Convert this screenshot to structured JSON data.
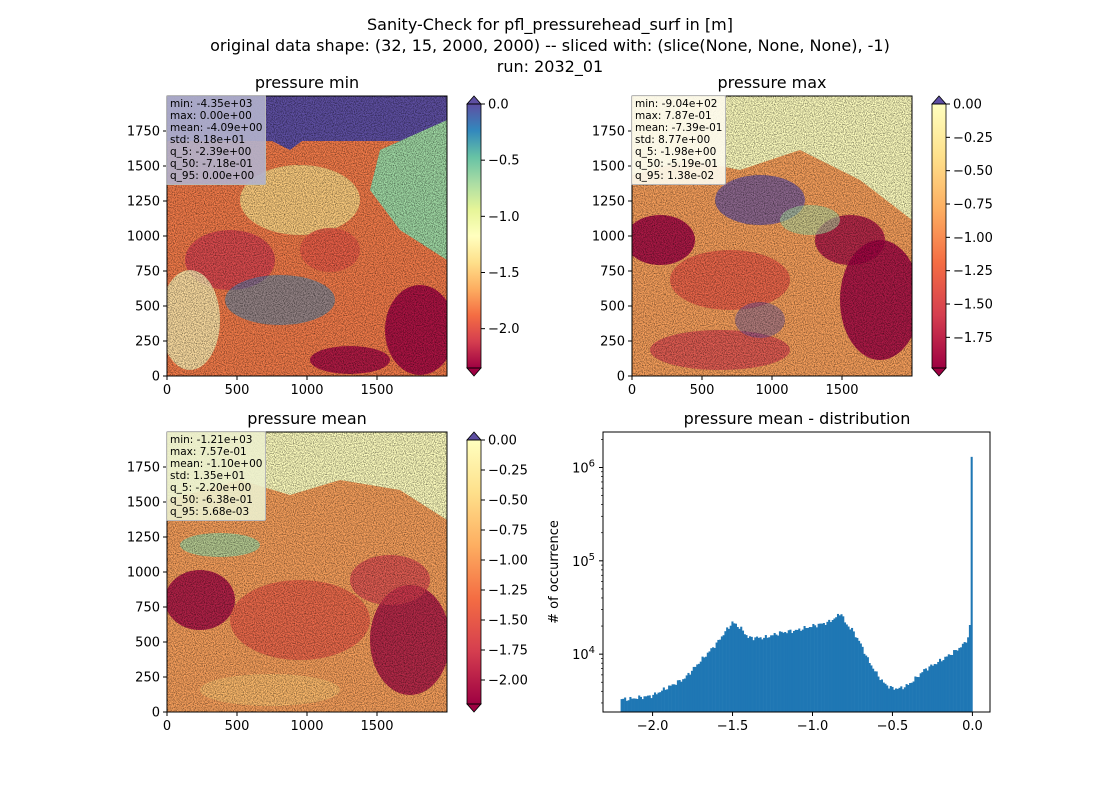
{
  "figure": {
    "title_lines": [
      "Sanity-Check for pfl_pressurehead_surf in [m]",
      "original data shape: (32, 15, 2000, 2000) -- sliced with: (slice(None, None, None), -1)",
      "run: 2032_01"
    ]
  },
  "chart_data": [
    {
      "type": "heatmap",
      "title": "pressure min",
      "x_ticks": [
        "0",
        "500",
        "1000",
        "1500"
      ],
      "y_ticks": [
        "0",
        "250",
        "500",
        "750",
        "1000",
        "1250",
        "1500",
        "1750"
      ],
      "xlim": [
        0,
        2000
      ],
      "ylim": [
        0,
        2000
      ],
      "colormap": "Spectral",
      "colorbar": {
        "range": [
          -2.35,
          0.0
        ],
        "ticks": [
          "0.0",
          "−0.5",
          "−1.0",
          "−1.5",
          "−2.0"
        ],
        "tick_values": [
          0.0,
          -0.5,
          -1.0,
          -1.5,
          -2.0
        ],
        "extend_top_color": "#5e4fa2",
        "extend_bottom_color": "#9e0142"
      },
      "stats": [
        "min: -4.35e+03",
        "max: 0.00e+00",
        "mean: -4.09e+00",
        "std: 8.18e+01",
        "q_5: -2.39e+00",
        "q_50: -7.18e-01",
        "q_95: 0.00e+00"
      ]
    },
    {
      "type": "heatmap",
      "title": "pressure max",
      "x_ticks": [
        "0",
        "500",
        "1000",
        "1500"
      ],
      "y_ticks": [
        "0",
        "250",
        "500",
        "750",
        "1000",
        "1250",
        "1500",
        "1750"
      ],
      "xlim": [
        0,
        2000
      ],
      "ylim": [
        0,
        2000
      ],
      "colormap": "Spectral",
      "colorbar": {
        "range": [
          -1.98,
          0.0
        ],
        "ticks": [
          "0.00",
          "−0.25",
          "−0.50",
          "−0.75",
          "−1.00",
          "−1.25",
          "−1.50",
          "−1.75"
        ],
        "tick_values": [
          0.0,
          -0.25,
          -0.5,
          -0.75,
          -1.0,
          -1.25,
          -1.5,
          -1.75
        ],
        "extend_top_color": "#5e4fa2",
        "extend_bottom_color": "#9e0142"
      },
      "stats": [
        "min: -9.04e+02",
        "max: 7.87e-01",
        "mean: -7.39e-01",
        "std: 8.77e+00",
        "q_5: -1.98e+00",
        "q_50: -5.19e-01",
        "q_95: 1.38e-02"
      ]
    },
    {
      "type": "heatmap",
      "title": "pressure mean",
      "x_ticks": [
        "0",
        "500",
        "1000",
        "1500"
      ],
      "y_ticks": [
        "0",
        "250",
        "500",
        "750",
        "1000",
        "1250",
        "1500",
        "1750"
      ],
      "xlim": [
        0,
        2000
      ],
      "ylim": [
        0,
        2000
      ],
      "colormap": "Spectral",
      "colorbar": {
        "range": [
          -2.2,
          0.0
        ],
        "ticks": [
          "0.00",
          "−0.25",
          "−0.50",
          "−0.75",
          "−1.00",
          "−1.25",
          "−1.50",
          "−1.75",
          "−2.00"
        ],
        "tick_values": [
          0.0,
          -0.25,
          -0.5,
          -0.75,
          -1.0,
          -1.25,
          -1.5,
          -1.75,
          -2.0
        ],
        "extend_top_color": "#5e4fa2",
        "extend_bottom_color": "#9e0142"
      },
      "stats": [
        "min: -1.21e+03",
        "max: 7.57e-01",
        "mean: -1.10e+00",
        "std: 1.35e+01",
        "q_5: -2.20e+00",
        "q_50: -6.38e-01",
        "q_95: 5.68e-03"
      ]
    },
    {
      "type": "bar",
      "title": "pressure mean - distribution",
      "ylabel": "# of occurrence",
      "xlabel": "",
      "yscale": "log",
      "xlim": [
        -2.31,
        0.11
      ],
      "ylim": [
        2400,
        2400000
      ],
      "x_ticks": [
        "−2.0",
        "−1.5",
        "−1.0",
        "−0.5",
        "0.0"
      ],
      "x_tick_values": [
        -2.0,
        -1.5,
        -1.0,
        -0.5,
        0.0
      ],
      "y_ticks": [
        "10^4",
        "10^5",
        "10^6"
      ],
      "y_tick_values": [
        10000,
        100000,
        1000000
      ],
      "bar_color": "#1f77b4",
      "bin_range": [
        -2.2,
        0.0
      ],
      "bin_count": 200,
      "counts_profile": {
        "x": [
          -2.2,
          -2.15,
          -2.0,
          -1.8,
          -1.6,
          -1.55,
          -1.5,
          -1.45,
          -1.4,
          -1.3,
          -1.2,
          -1.1,
          -1.0,
          -0.9,
          -0.85,
          -0.82,
          -0.8,
          -0.75,
          -0.7,
          -0.65,
          -0.6,
          -0.55,
          -0.5,
          -0.45,
          -0.4,
          -0.35,
          -0.3,
          -0.2,
          -0.1,
          -0.05,
          -0.02,
          -0.01,
          0.0
        ],
        "y": [
          3300,
          3300,
          3600,
          5500,
          13000,
          17000,
          22000,
          19000,
          15000,
          15000,
          17000,
          18000,
          20000,
          22000,
          25000,
          28000,
          22000,
          18000,
          13000,
          8500,
          6200,
          4800,
          4300,
          4300,
          4700,
          5600,
          6800,
          8500,
          11000,
          13000,
          16000,
          30000,
          1300000
        ]
      }
    }
  ]
}
